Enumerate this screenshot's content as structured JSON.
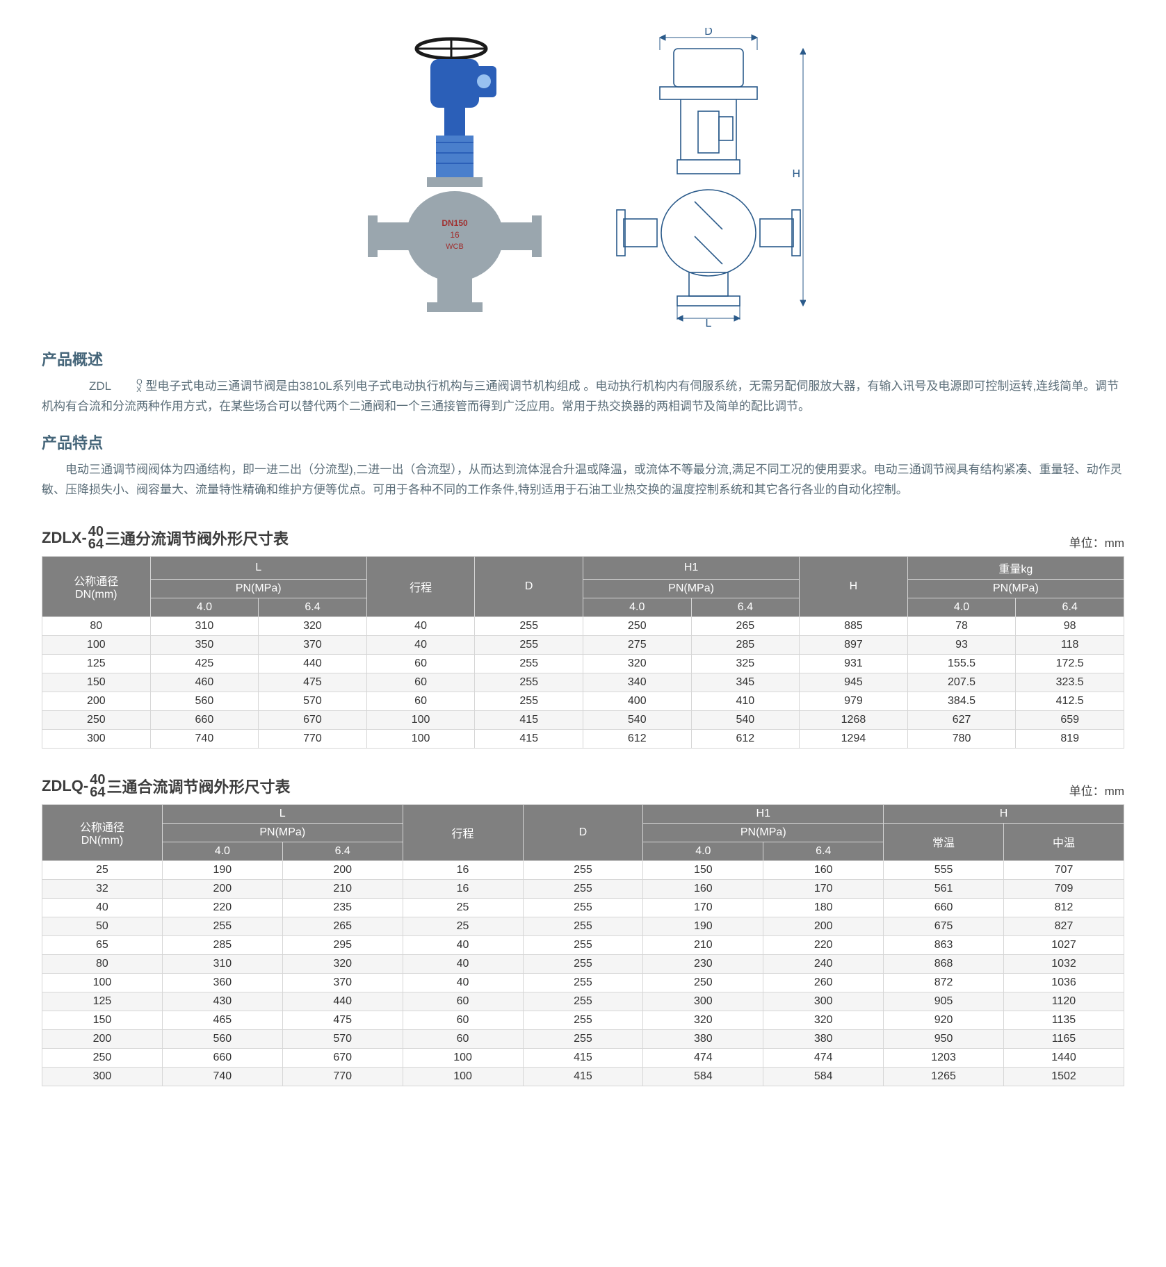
{
  "hero": {
    "photo_label": "DN150 16 WCB",
    "diagram_dims": {
      "D": "D",
      "H": "H",
      "L": "L"
    }
  },
  "sections": {
    "overview_title": "产品概述",
    "overview_prefix": "ZDL ",
    "overview_frac_top": "Q",
    "overview_frac_bot": "X",
    "overview_body": " 型电子式电动三通调节阀是由3810L系列电子式电动执行机构与三通阀调节机构组成 。电动执行机构内有伺服系统，无需另配伺服放大器，有输入讯号及电源即可控制运转,连线简单。调节机构有合流和分流两种作用方式，在某些场合可以替代两个二通阀和一个三通接管而得到广泛应用。常用于热交换器的两相调节及简单的配比调节。",
    "features_title": "产品特点",
    "features_body": "电动三通调节阀阀体为四通结构，即一进二出（分流型),二进一出（合流型），从而达到流体混合升温或降温，或流体不等最分流,满足不同工况的使用要求。电动三通调节阀具有结构紧凑、重量轻、动作灵敏、压降损失小、阀容量大、流量特性精确和维护方便等优点。可用于各种不同的工作条件,特别适用于石油工业热交换的温度控制系统和其它各行各业的自动化控制。"
  },
  "table1": {
    "title_prefix": "ZDLX-",
    "title_frac_top": "40",
    "title_frac_bot": "64",
    "title_suffix": "三通分流调节阀外形尺寸表",
    "unit": "单位：mm",
    "headers": {
      "dn": "公称通径\nDN(mm)",
      "L": "L",
      "PN": "PN(MPa)",
      "t40": "4.0",
      "t64": "6.4",
      "stroke": "行程",
      "D": "D",
      "H1": "H1",
      "H": "H",
      "weight": "重量kg"
    },
    "rows": [
      [
        "80",
        "310",
        "320",
        "40",
        "255",
        "250",
        "265",
        "885",
        "78",
        "98"
      ],
      [
        "100",
        "350",
        "370",
        "40",
        "255",
        "275",
        "285",
        "897",
        "93",
        "118"
      ],
      [
        "125",
        "425",
        "440",
        "60",
        "255",
        "320",
        "325",
        "931",
        "155.5",
        "172.5"
      ],
      [
        "150",
        "460",
        "475",
        "60",
        "255",
        "340",
        "345",
        "945",
        "207.5",
        "323.5"
      ],
      [
        "200",
        "560",
        "570",
        "60",
        "255",
        "400",
        "410",
        "979",
        "384.5",
        "412.5"
      ],
      [
        "250",
        "660",
        "670",
        "100",
        "415",
        "540",
        "540",
        "1268",
        "627",
        "659"
      ],
      [
        "300",
        "740",
        "770",
        "100",
        "415",
        "612",
        "612",
        "1294",
        "780",
        "819"
      ]
    ]
  },
  "table2": {
    "title_prefix": "ZDLQ-",
    "title_frac_top": "40",
    "title_frac_bot": "64",
    "title_suffix": "三通合流调节阀外形尺寸表",
    "unit": "单位：mm",
    "headers": {
      "dn": "公称通径\nDN(mm)",
      "L": "L",
      "PN": "PN(MPa)",
      "t40": "4.0",
      "t64": "6.4",
      "stroke": "行程",
      "D": "D",
      "H1": "H1",
      "H": "H",
      "normal": "常温",
      "mid": "中温"
    },
    "rows": [
      [
        "25",
        "190",
        "200",
        "16",
        "255",
        "150",
        "160",
        "555",
        "707"
      ],
      [
        "32",
        "200",
        "210",
        "16",
        "255",
        "160",
        "170",
        "561",
        "709"
      ],
      [
        "40",
        "220",
        "235",
        "25",
        "255",
        "170",
        "180",
        "660",
        "812"
      ],
      [
        "50",
        "255",
        "265",
        "25",
        "255",
        "190",
        "200",
        "675",
        "827"
      ],
      [
        "65",
        "285",
        "295",
        "40",
        "255",
        "210",
        "220",
        "863",
        "1027"
      ],
      [
        "80",
        "310",
        "320",
        "40",
        "255",
        "230",
        "240",
        "868",
        "1032"
      ],
      [
        "100",
        "360",
        "370",
        "40",
        "255",
        "250",
        "260",
        "872",
        "1036"
      ],
      [
        "125",
        "430",
        "440",
        "60",
        "255",
        "300",
        "300",
        "905",
        "1120"
      ],
      [
        "150",
        "465",
        "475",
        "60",
        "255",
        "320",
        "320",
        "920",
        "1135"
      ],
      [
        "200",
        "560",
        "570",
        "60",
        "255",
        "380",
        "380",
        "950",
        "1165"
      ],
      [
        "250",
        "660",
        "670",
        "100",
        "415",
        "474",
        "474",
        "1203",
        "1440"
      ],
      [
        "300",
        "740",
        "770",
        "100",
        "415",
        "584",
        "584",
        "1265",
        "1502"
      ]
    ]
  }
}
